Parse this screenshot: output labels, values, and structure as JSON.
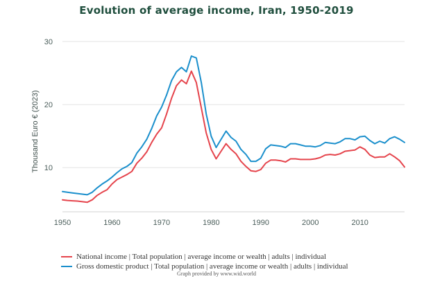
{
  "chart_data": {
    "type": "line",
    "title": "Evolution of average income, Iran, 1950-2019",
    "xlabel": "",
    "ylabel": "Thousand Euro € (2023)",
    "xlim": [
      1950,
      2019
    ],
    "ylim": [
      3,
      30
    ],
    "x_ticks": [
      1950,
      1960,
      1970,
      1980,
      1990,
      2000,
      2010
    ],
    "y_ticks": [
      10,
      20,
      30
    ],
    "grid": true,
    "legend_position": "bottom",
    "series": [
      {
        "name": "National income | Total population | average income or wealth | adults | individual",
        "color": "#e5434b",
        "points": [
          [
            1950,
            4.9
          ],
          [
            1951,
            4.8
          ],
          [
            1952,
            4.75
          ],
          [
            1953,
            4.7
          ],
          [
            1954,
            4.6
          ],
          [
            1955,
            4.5
          ],
          [
            1956,
            4.9
          ],
          [
            1957,
            5.6
          ],
          [
            1958,
            6.1
          ],
          [
            1959,
            6.5
          ],
          [
            1960,
            7.4
          ],
          [
            1961,
            8.1
          ],
          [
            1962,
            8.5
          ],
          [
            1963,
            8.9
          ],
          [
            1964,
            9.4
          ],
          [
            1965,
            10.7
          ],
          [
            1966,
            11.5
          ],
          [
            1967,
            12.5
          ],
          [
            1968,
            14.0
          ],
          [
            1969,
            15.3
          ],
          [
            1970,
            16.3
          ],
          [
            1971,
            18.5
          ],
          [
            1972,
            21.0
          ],
          [
            1973,
            23.0
          ],
          [
            1974,
            23.9
          ],
          [
            1975,
            23.3
          ],
          [
            1976,
            25.3
          ],
          [
            1977,
            23.5
          ],
          [
            1978,
            19.5
          ],
          [
            1979,
            15.5
          ],
          [
            1980,
            12.9
          ],
          [
            1981,
            11.4
          ],
          [
            1982,
            12.6
          ],
          [
            1983,
            13.8
          ],
          [
            1984,
            12.9
          ],
          [
            1985,
            12.2
          ],
          [
            1986,
            11.0
          ],
          [
            1987,
            10.2
          ],
          [
            1988,
            9.5
          ],
          [
            1989,
            9.4
          ],
          [
            1990,
            9.7
          ],
          [
            1991,
            10.7
          ],
          [
            1992,
            11.2
          ],
          [
            1993,
            11.2
          ],
          [
            1994,
            11.1
          ],
          [
            1995,
            10.9
          ],
          [
            1996,
            11.4
          ],
          [
            1997,
            11.4
          ],
          [
            1998,
            11.3
          ],
          [
            1999,
            11.3
          ],
          [
            2000,
            11.3
          ],
          [
            2001,
            11.4
          ],
          [
            2002,
            11.6
          ],
          [
            2003,
            12.0
          ],
          [
            2004,
            12.1
          ],
          [
            2005,
            12.0
          ],
          [
            2006,
            12.2
          ],
          [
            2007,
            12.6
          ],
          [
            2008,
            12.7
          ],
          [
            2009,
            12.8
          ],
          [
            2010,
            13.3
          ],
          [
            2011,
            12.9
          ],
          [
            2012,
            12.0
          ],
          [
            2013,
            11.6
          ],
          [
            2014,
            11.7
          ],
          [
            2015,
            11.7
          ],
          [
            2016,
            12.2
          ],
          [
            2017,
            11.7
          ],
          [
            2018,
            11.1
          ],
          [
            2019,
            10.1
          ]
        ]
      },
      {
        "name": "Gross domestic product | Total population | average income or wealth | adults | individual",
        "color": "#1a8fcc",
        "points": [
          [
            1950,
            6.2
          ],
          [
            1951,
            6.1
          ],
          [
            1952,
            6.0
          ],
          [
            1953,
            5.9
          ],
          [
            1954,
            5.8
          ],
          [
            1955,
            5.7
          ],
          [
            1956,
            6.1
          ],
          [
            1957,
            6.8
          ],
          [
            1958,
            7.4
          ],
          [
            1959,
            7.9
          ],
          [
            1960,
            8.5
          ],
          [
            1961,
            9.2
          ],
          [
            1962,
            9.8
          ],
          [
            1963,
            10.2
          ],
          [
            1964,
            10.8
          ],
          [
            1965,
            12.3
          ],
          [
            1966,
            13.3
          ],
          [
            1967,
            14.5
          ],
          [
            1968,
            16.2
          ],
          [
            1969,
            18.2
          ],
          [
            1970,
            19.6
          ],
          [
            1971,
            21.5
          ],
          [
            1972,
            23.8
          ],
          [
            1973,
            25.2
          ],
          [
            1974,
            25.9
          ],
          [
            1975,
            25.2
          ],
          [
            1976,
            27.7
          ],
          [
            1977,
            27.4
          ],
          [
            1978,
            23.5
          ],
          [
            1979,
            18.5
          ],
          [
            1980,
            15.0
          ],
          [
            1981,
            13.2
          ],
          [
            1982,
            14.5
          ],
          [
            1983,
            15.8
          ],
          [
            1984,
            14.8
          ],
          [
            1985,
            14.2
          ],
          [
            1986,
            12.9
          ],
          [
            1987,
            12.1
          ],
          [
            1988,
            11.0
          ],
          [
            1989,
            11.0
          ],
          [
            1990,
            11.5
          ],
          [
            1991,
            13.0
          ],
          [
            1992,
            13.6
          ],
          [
            1993,
            13.5
          ],
          [
            1994,
            13.4
          ],
          [
            1995,
            13.2
          ],
          [
            1996,
            13.8
          ],
          [
            1997,
            13.8
          ],
          [
            1998,
            13.6
          ],
          [
            1999,
            13.4
          ],
          [
            2000,
            13.4
          ],
          [
            2001,
            13.3
          ],
          [
            2002,
            13.5
          ],
          [
            2003,
            14.0
          ],
          [
            2004,
            13.9
          ],
          [
            2005,
            13.8
          ],
          [
            2006,
            14.1
          ],
          [
            2007,
            14.6
          ],
          [
            2008,
            14.6
          ],
          [
            2009,
            14.4
          ],
          [
            2010,
            14.9
          ],
          [
            2011,
            15.0
          ],
          [
            2012,
            14.3
          ],
          [
            2013,
            13.8
          ],
          [
            2014,
            14.2
          ],
          [
            2015,
            13.9
          ],
          [
            2016,
            14.6
          ],
          [
            2017,
            14.9
          ],
          [
            2018,
            14.5
          ],
          [
            2019,
            14.0
          ]
        ]
      }
    ]
  },
  "legend": [
    {
      "label": "National income | Total population | average income or wealth | adults | individual",
      "color": "#e5434b"
    },
    {
      "label": "Gross domestic product | Total population | average income or wealth | adults | individual",
      "color": "#1a8fcc"
    }
  ],
  "footer": {
    "credit": "Graph provided by www.wid.world"
  }
}
